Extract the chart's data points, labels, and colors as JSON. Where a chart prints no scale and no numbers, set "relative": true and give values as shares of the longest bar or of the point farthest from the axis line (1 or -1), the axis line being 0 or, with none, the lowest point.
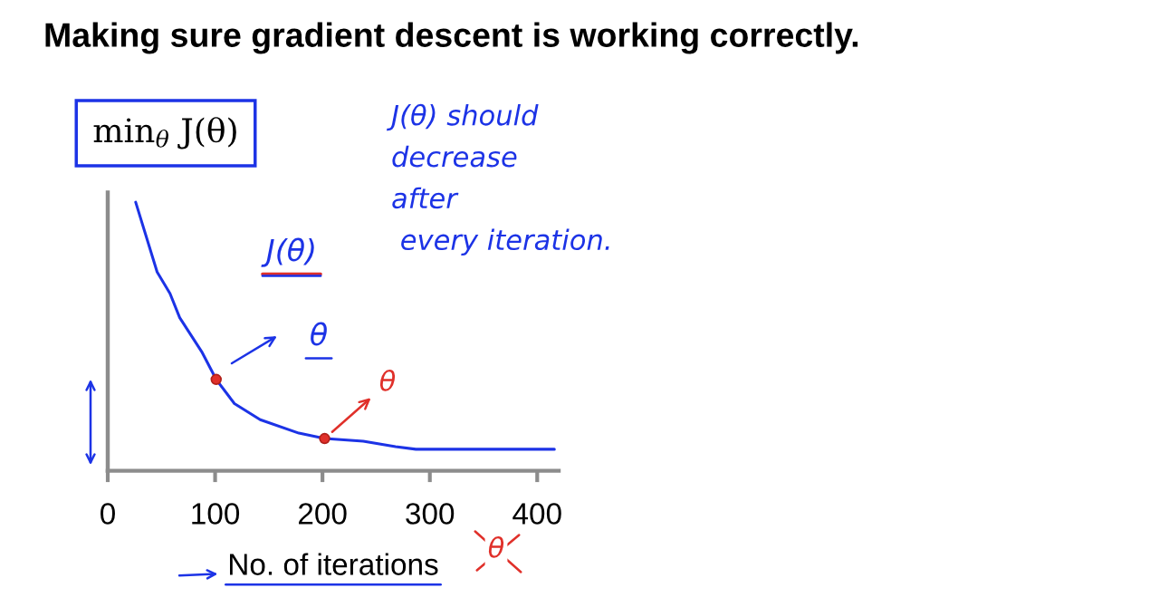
{
  "chart_data": {
    "type": "line",
    "title": "Making sure gradient descent is working correctly.",
    "xlabel": "No. of iterations",
    "ylabel": "min$_{θ}$ J(θ)",
    "relative": true,
    "xlim": [
      0,
      420
    ],
    "xticks": [
      0,
      100,
      200,
      300,
      400
    ],
    "series": [
      {
        "color": "#1c33e6",
        "x": [
          26,
          46,
          58,
          67,
          88,
          101,
          118,
          142,
          178,
          202,
          238,
          268,
          287,
          329,
          359,
          389,
          416
        ],
        "values": [
          1,
          0.74,
          0.66,
          0.57,
          0.44,
          0.34,
          0.25,
          0.19,
          0.14,
          0.12,
          0.11,
          0.09,
          0.08,
          0.08,
          0.08,
          0.08,
          0.08
        ]
      },
      {
        "type": "scatter",
        "color": "#e0302a",
        "marker": "circle",
        "x": [
          101,
          202
        ],
        "values": [
          0.34,
          0.12
        ]
      }
    ],
    "annotations": [
      "J(θ) should\ndecrease\nafter\n every iteration.",
      "J(θ)",
      "θ",
      {
        "text": "θ",
        "x": 202,
        "y": 0.12
      },
      "θ"
    ]
  }
}
